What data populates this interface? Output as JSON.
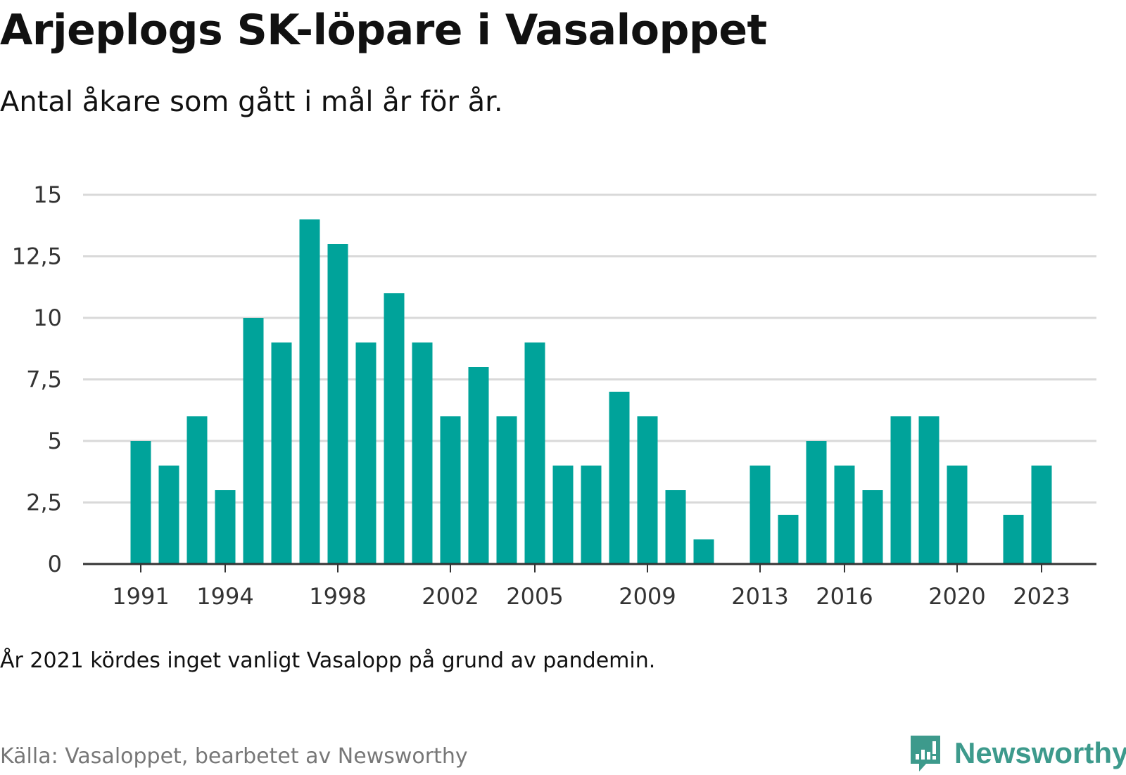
{
  "title": "Arjeplogs SK-löpare i Vasaloppet",
  "subtitle": "Antal åkare som gått i mål år för år.",
  "note": "År 2021 kördes inget vanligt Vasalopp på grund av pandemin.",
  "source": "Källa: Vasaloppet, bearbetet av Newsworthy",
  "brand": {
    "name": "Newsworthy",
    "icon": "newsworthy-logo-icon",
    "color": "#3d9a8c"
  },
  "chart_data": {
    "type": "bar",
    "title": "Arjeplogs SK-löpare i Vasaloppet",
    "subtitle": "Antal åkare som gått i mål år för år.",
    "xlabel": "",
    "ylabel": "",
    "categories": [
      1991,
      1992,
      1993,
      1994,
      1995,
      1996,
      1997,
      1998,
      1999,
      2000,
      2001,
      2002,
      2003,
      2004,
      2005,
      2006,
      2007,
      2008,
      2009,
      2010,
      2011,
      2012,
      2013,
      2014,
      2015,
      2016,
      2017,
      2018,
      2019,
      2020,
      2021,
      2022,
      2023
    ],
    "values": [
      5,
      4,
      6,
      3,
      10,
      9,
      14,
      13,
      9,
      11,
      9,
      6,
      8,
      6,
      9,
      4,
      4,
      7,
      6,
      3,
      1,
      0,
      4,
      2,
      5,
      4,
      3,
      6,
      6,
      4,
      0,
      2,
      4
    ],
    "ylim": [
      0,
      15
    ],
    "yticks": [
      0,
      2.5,
      5,
      7.5,
      10,
      12.5,
      15
    ],
    "ytick_labels": [
      "0",
      "2,5",
      "5",
      "7,5",
      "10",
      "12,5",
      "15"
    ],
    "xtick_labels": [
      "1991",
      "1994",
      "1998",
      "2002",
      "2005",
      "2009",
      "2013",
      "2016",
      "2020",
      "2023"
    ],
    "grid": true,
    "bar_color": "#00a39a",
    "grid_color": "#d9d9d9",
    "axis_color": "#333333"
  }
}
